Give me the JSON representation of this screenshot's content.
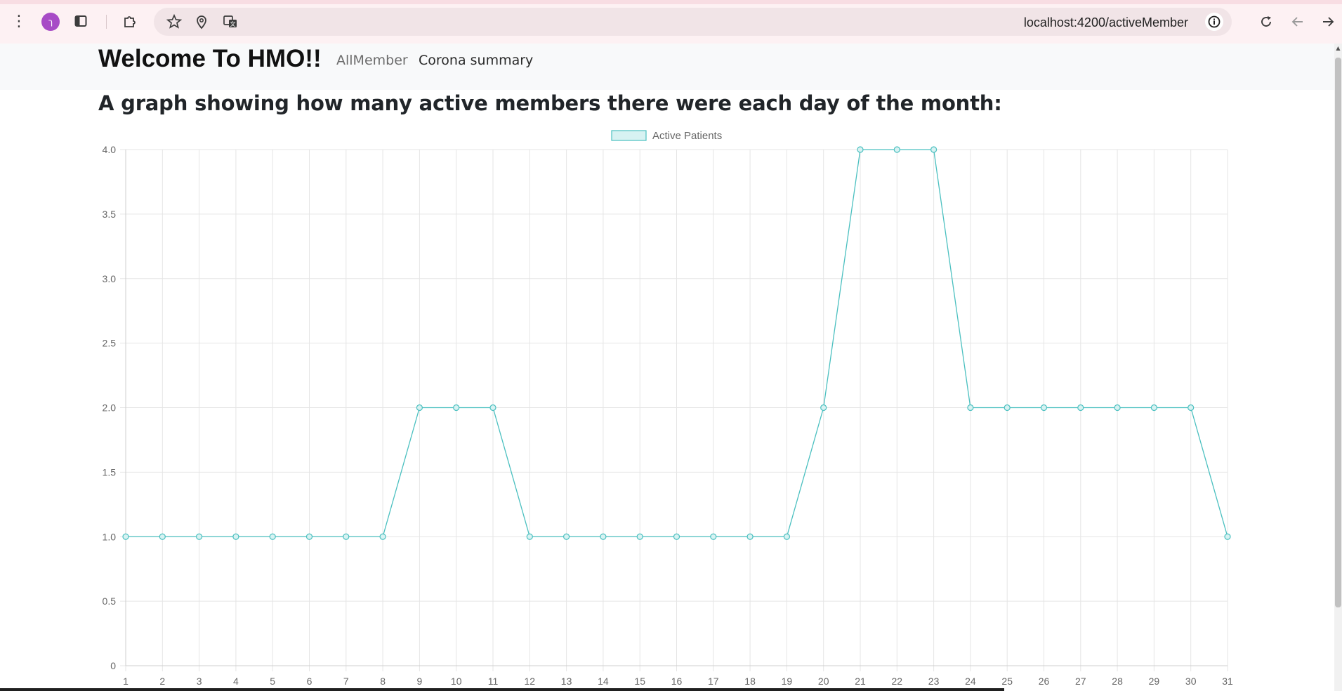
{
  "browser": {
    "url": "localhost:4200/activeMember",
    "profile_initial": "ך"
  },
  "navbar": {
    "brand": "Welcome To HMO!!",
    "links": [
      "AllMember",
      "Corona summary"
    ]
  },
  "heading": "A graph showing how many active members there were each day of the month:",
  "colors": {
    "line": "#4bc0c0",
    "fill": "#d7f2f2",
    "grid": "#e5e5e5",
    "tick_text": "#666666"
  },
  "chart_data": {
    "type": "line",
    "legend_position": "top-center",
    "grid": true,
    "ylim": [
      0,
      4
    ],
    "yticks": [
      "0",
      "0.5",
      "1.0",
      "1.5",
      "2.0",
      "2.5",
      "3.0",
      "3.5",
      "4.0"
    ],
    "categories": [
      "1",
      "2",
      "3",
      "4",
      "5",
      "6",
      "7",
      "8",
      "9",
      "10",
      "11",
      "12",
      "13",
      "14",
      "15",
      "16",
      "17",
      "18",
      "19",
      "20",
      "21",
      "22",
      "23",
      "24",
      "25",
      "26",
      "27",
      "28",
      "29",
      "30",
      "31"
    ],
    "series": [
      {
        "name": "Active Patients",
        "values": [
          1,
          1,
          1,
          1,
          1,
          1,
          1,
          1,
          2,
          2,
          2,
          1,
          1,
          1,
          1,
          1,
          1,
          1,
          1,
          2,
          4,
          4,
          4,
          2,
          2,
          2,
          2,
          2,
          2,
          2,
          1
        ]
      }
    ]
  }
}
